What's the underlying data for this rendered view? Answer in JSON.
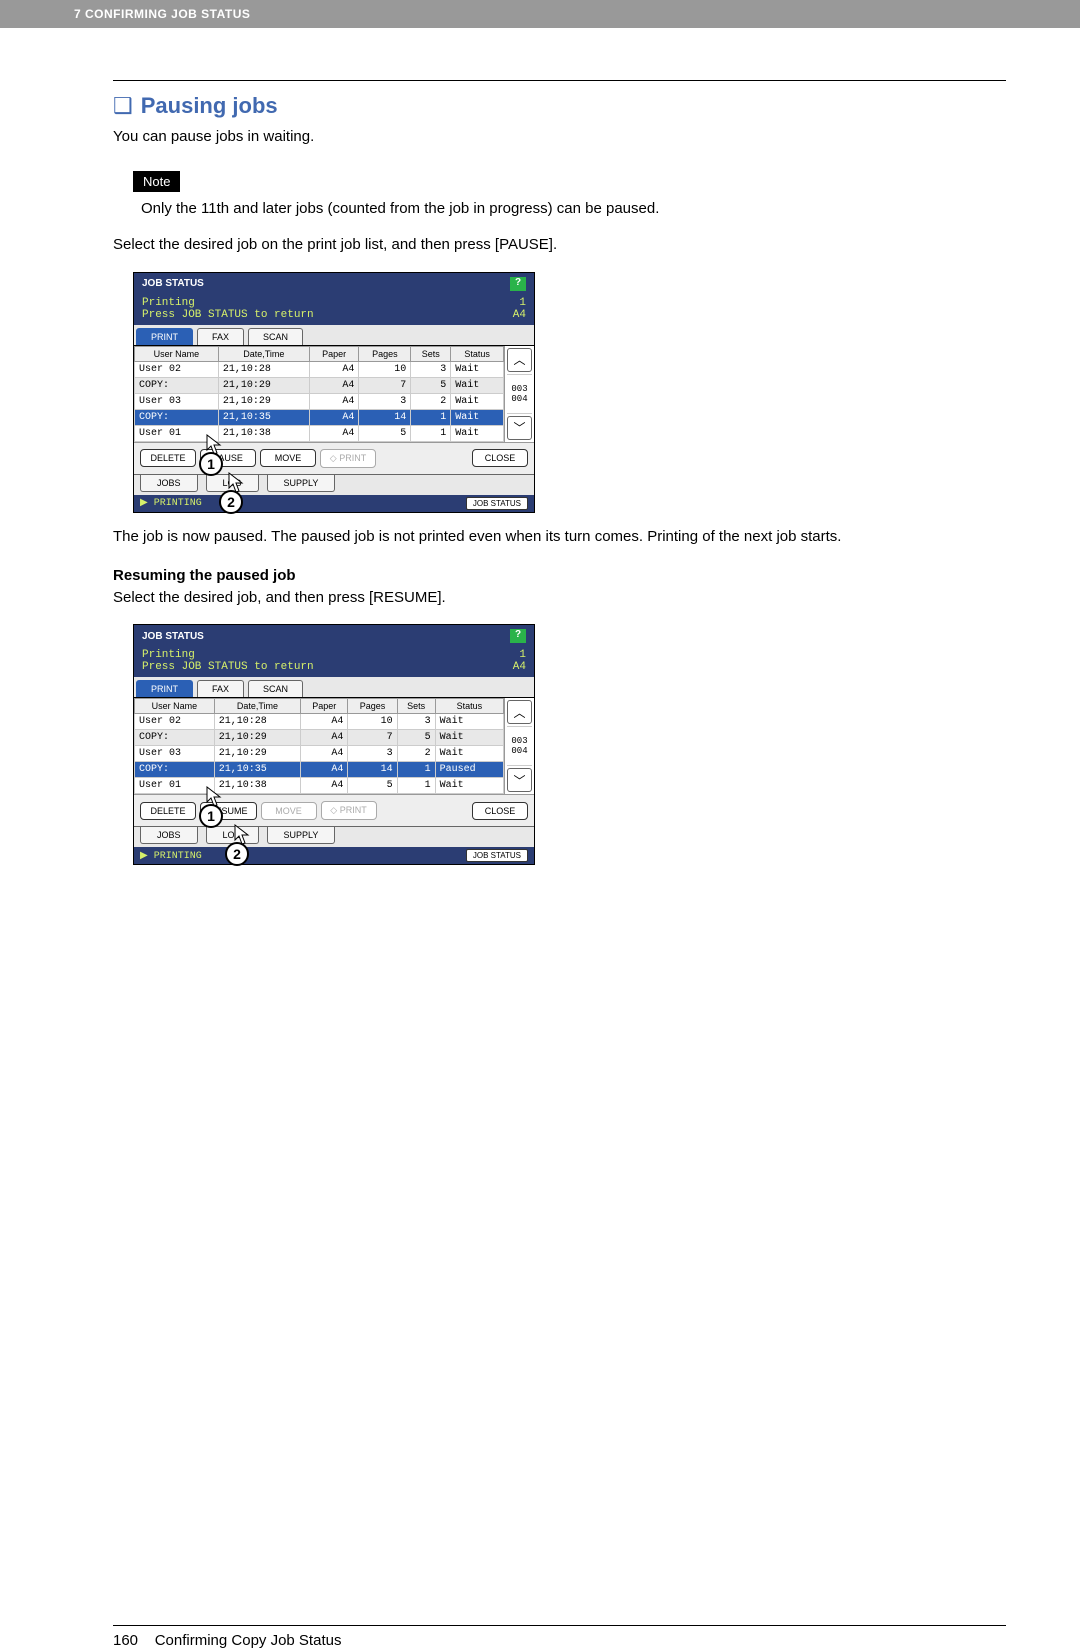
{
  "header": {
    "breadcrumb": "7 CONFIRMING JOB STATUS"
  },
  "main": {
    "section_title": "Pausing jobs",
    "intro": "You can pause jobs in waiting.",
    "note_label": "Note",
    "note_body": "Only the 11th and later jobs (counted from the job in progress) can be paused.",
    "instruction1": "Select the desired job on the print job list, and then press [PAUSE].",
    "result1": "The job is now paused. The paused job is not printed even when its turn comes. Printing of the next job starts.",
    "sub_heading": "Resuming the paused job",
    "instruction2": "Select the desired job, and then press [RESUME]."
  },
  "panel1": {
    "title": "JOB STATUS",
    "sub_left_l1": "Printing",
    "sub_left_l2": "Press JOB STATUS to return",
    "sub_right_l1": "1",
    "sub_right_l2": "A4",
    "tabs": {
      "print": "PRINT",
      "fax": "FAX",
      "scan": "SCAN"
    },
    "cols": {
      "user": "User Name",
      "dt": "Date,Time",
      "paper": "Paper",
      "pages": "Pages",
      "sets": "Sets",
      "status": "Status"
    },
    "rows": [
      {
        "u": "User 02",
        "dt": "21,10:28",
        "p": "A4",
        "pg": "10",
        "s": "3",
        "st": "Wait",
        "alt": false,
        "sel": false
      },
      {
        "u": "COPY:",
        "dt": "21,10:29",
        "p": "A4",
        "pg": "7",
        "s": "5",
        "st": "Wait",
        "alt": true,
        "sel": false
      },
      {
        "u": "User 03",
        "dt": "21,10:29",
        "p": "A4",
        "pg": "3",
        "s": "2",
        "st": "Wait",
        "alt": false,
        "sel": false
      },
      {
        "u": "COPY:",
        "dt": "21,10:35",
        "p": "A4",
        "pg": "14",
        "s": "1",
        "st": "Wait",
        "alt": false,
        "sel": true
      },
      {
        "u": "User 01",
        "dt": "21,10:38",
        "p": "A4",
        "pg": "5",
        "s": "1",
        "st": "Wait",
        "alt": false,
        "sel": false
      }
    ],
    "scroll": {
      "from": "003",
      "to": "004"
    },
    "btns": {
      "delete": "DELETE",
      "pause": "PAUSE",
      "move": "MOVE",
      "print": "PRINT",
      "close": "CLOSE"
    },
    "subtabs": {
      "jobs": "JOBS",
      "log": "LOG",
      "supply": "SUPPLY"
    },
    "status_left": "PRINTING",
    "jobstatus": "JOB STATUS"
  },
  "panel2": {
    "title": "JOB STATUS",
    "sub_left_l1": "Printing",
    "sub_left_l2": "Press JOB STATUS to return",
    "sub_right_l1": "1",
    "sub_right_l2": "A4",
    "tabs": {
      "print": "PRINT",
      "fax": "FAX",
      "scan": "SCAN"
    },
    "cols": {
      "user": "User Name",
      "dt": "Date,Time",
      "paper": "Paper",
      "pages": "Pages",
      "sets": "Sets",
      "status": "Status"
    },
    "rows": [
      {
        "u": "User 02",
        "dt": "21,10:28",
        "p": "A4",
        "pg": "10",
        "s": "3",
        "st": "Wait",
        "alt": false,
        "sel": false
      },
      {
        "u": "COPY:",
        "dt": "21,10:29",
        "p": "A4",
        "pg": "7",
        "s": "5",
        "st": "Wait",
        "alt": true,
        "sel": false
      },
      {
        "u": "User 03",
        "dt": "21,10:29",
        "p": "A4",
        "pg": "3",
        "s": "2",
        "st": "Wait",
        "alt": false,
        "sel": false
      },
      {
        "u": "COPY:",
        "dt": "21,10:35",
        "p": "A4",
        "pg": "14",
        "s": "1",
        "st": "Paused",
        "alt": false,
        "sel": true
      },
      {
        "u": "User 01",
        "dt": "21,10:38",
        "p": "A4",
        "pg": "5",
        "s": "1",
        "st": "Wait",
        "alt": false,
        "sel": false
      }
    ],
    "scroll": {
      "from": "003",
      "to": "004"
    },
    "btns": {
      "delete": "DELETE",
      "resume": "RESUME",
      "move": "MOVE",
      "print": "PRINT",
      "close": "CLOSE"
    },
    "subtabs": {
      "jobs": "JOBS",
      "log": "LOG",
      "supply": "SUPPLY"
    },
    "status_left": "PRINTING",
    "jobstatus": "JOB STATUS"
  },
  "footer": {
    "page": "160",
    "title": "Confirming Copy Job Status"
  },
  "callouts": {
    "c1": "1",
    "c2": "2"
  }
}
